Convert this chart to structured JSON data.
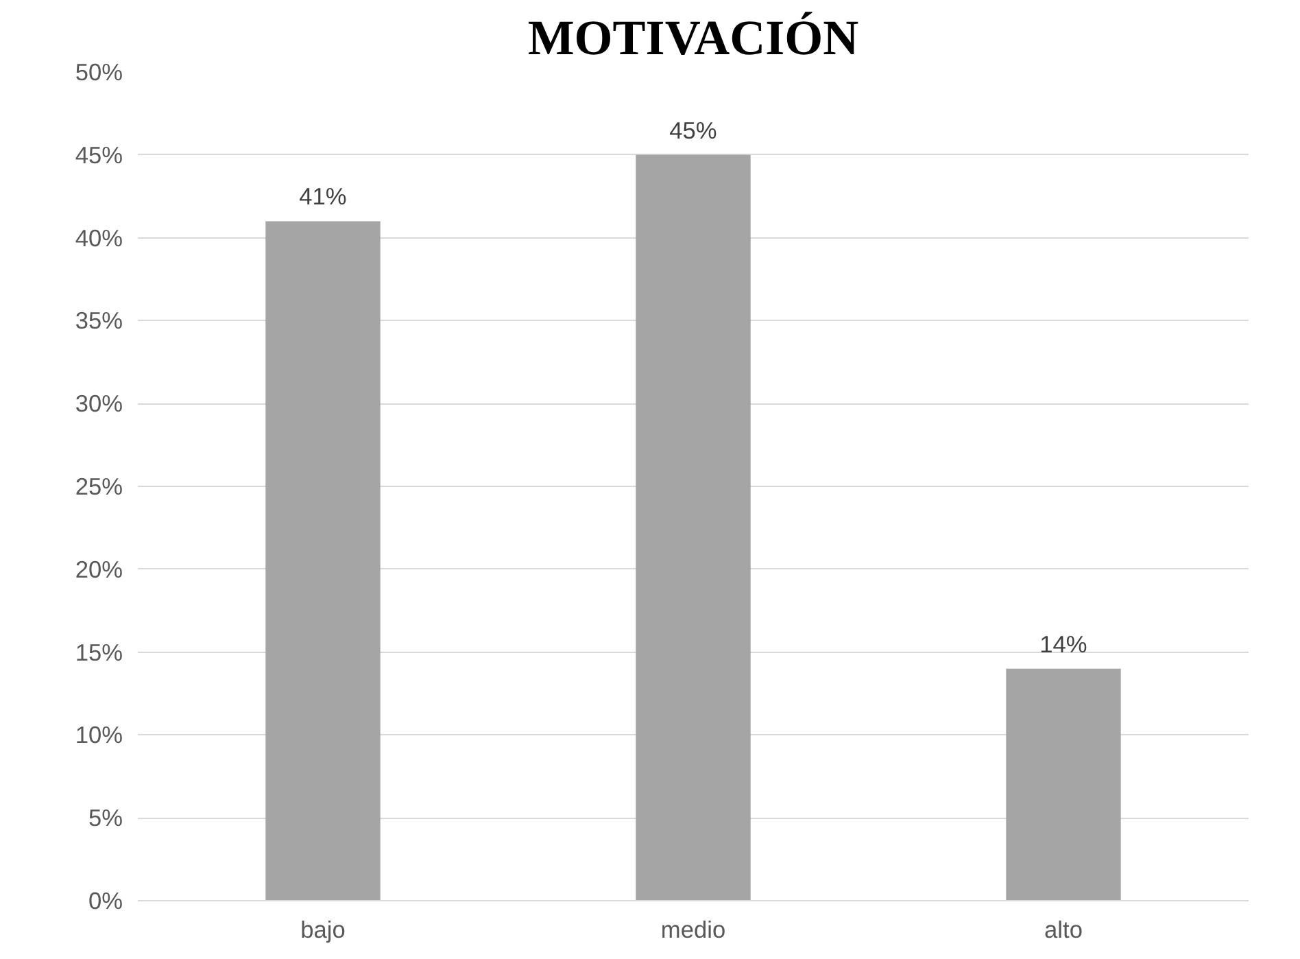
{
  "chart_data": {
    "type": "bar",
    "title": "MOTIVACIÓN",
    "categories": [
      "bajo",
      "medio",
      "alto"
    ],
    "values": [
      41,
      45,
      14
    ],
    "value_labels": [
      "41%",
      "45%",
      "14%"
    ],
    "color": "#a5a5a5",
    "ylim": [
      0,
      50
    ],
    "yticks": [
      {
        "value": 0,
        "label": "0%"
      },
      {
        "value": 5,
        "label": "5%"
      },
      {
        "value": 10,
        "label": "10%"
      },
      {
        "value": 15,
        "label": "15%"
      },
      {
        "value": 20,
        "label": "20%"
      },
      {
        "value": 25,
        "label": "25%"
      },
      {
        "value": 30,
        "label": "30%"
      },
      {
        "value": 35,
        "label": "35%"
      },
      {
        "value": 40,
        "label": "40%"
      },
      {
        "value": 45,
        "label": "45%"
      },
      {
        "value": 50,
        "label": "50%"
      }
    ],
    "grid": "y"
  }
}
